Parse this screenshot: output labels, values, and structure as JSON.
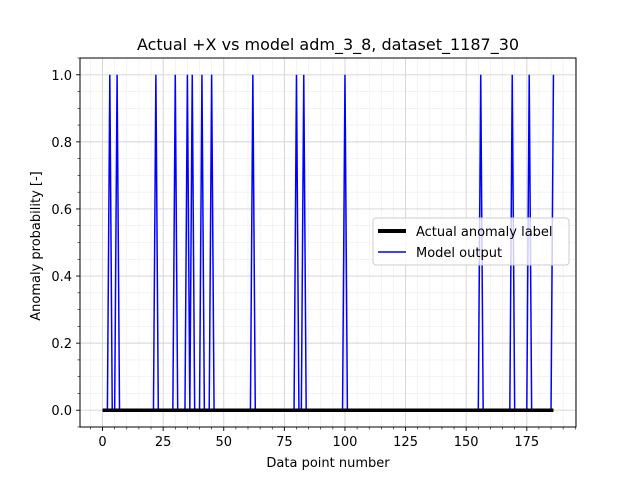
{
  "chart_data": {
    "type": "line",
    "title": "Actual +X vs model adm_3_8, dataset_1187_30",
    "xlabel": "Data point number",
    "ylabel": "Anomaly probability [-]",
    "xlim": [
      -9.3,
      195.3
    ],
    "ylim": [
      -0.05,
      1.05
    ],
    "xticks": [
      0,
      25,
      50,
      75,
      100,
      125,
      150,
      175
    ],
    "yticks": [
      0.0,
      0.2,
      0.4,
      0.6,
      0.8,
      1.0
    ],
    "xtick_labels": [
      "0",
      "25",
      "50",
      "75",
      "100",
      "125",
      "150",
      "175"
    ],
    "ytick_labels": [
      "0.0",
      "0.2",
      "0.4",
      "0.6",
      "0.8",
      "1.0"
    ],
    "grid": true,
    "minor_grid": true,
    "legend_position": "center-right",
    "n_points": 187,
    "series": [
      {
        "name": "Actual anomaly label",
        "color": "#000000",
        "style": "thick",
        "spikes": []
      },
      {
        "name": "Model output",
        "color": "#0000ff",
        "style": "thin",
        "spikes": [
          3,
          6,
          22,
          30,
          35,
          37,
          41,
          45,
          62,
          80,
          83,
          100,
          156,
          169,
          176,
          186
        ]
      }
    ]
  }
}
